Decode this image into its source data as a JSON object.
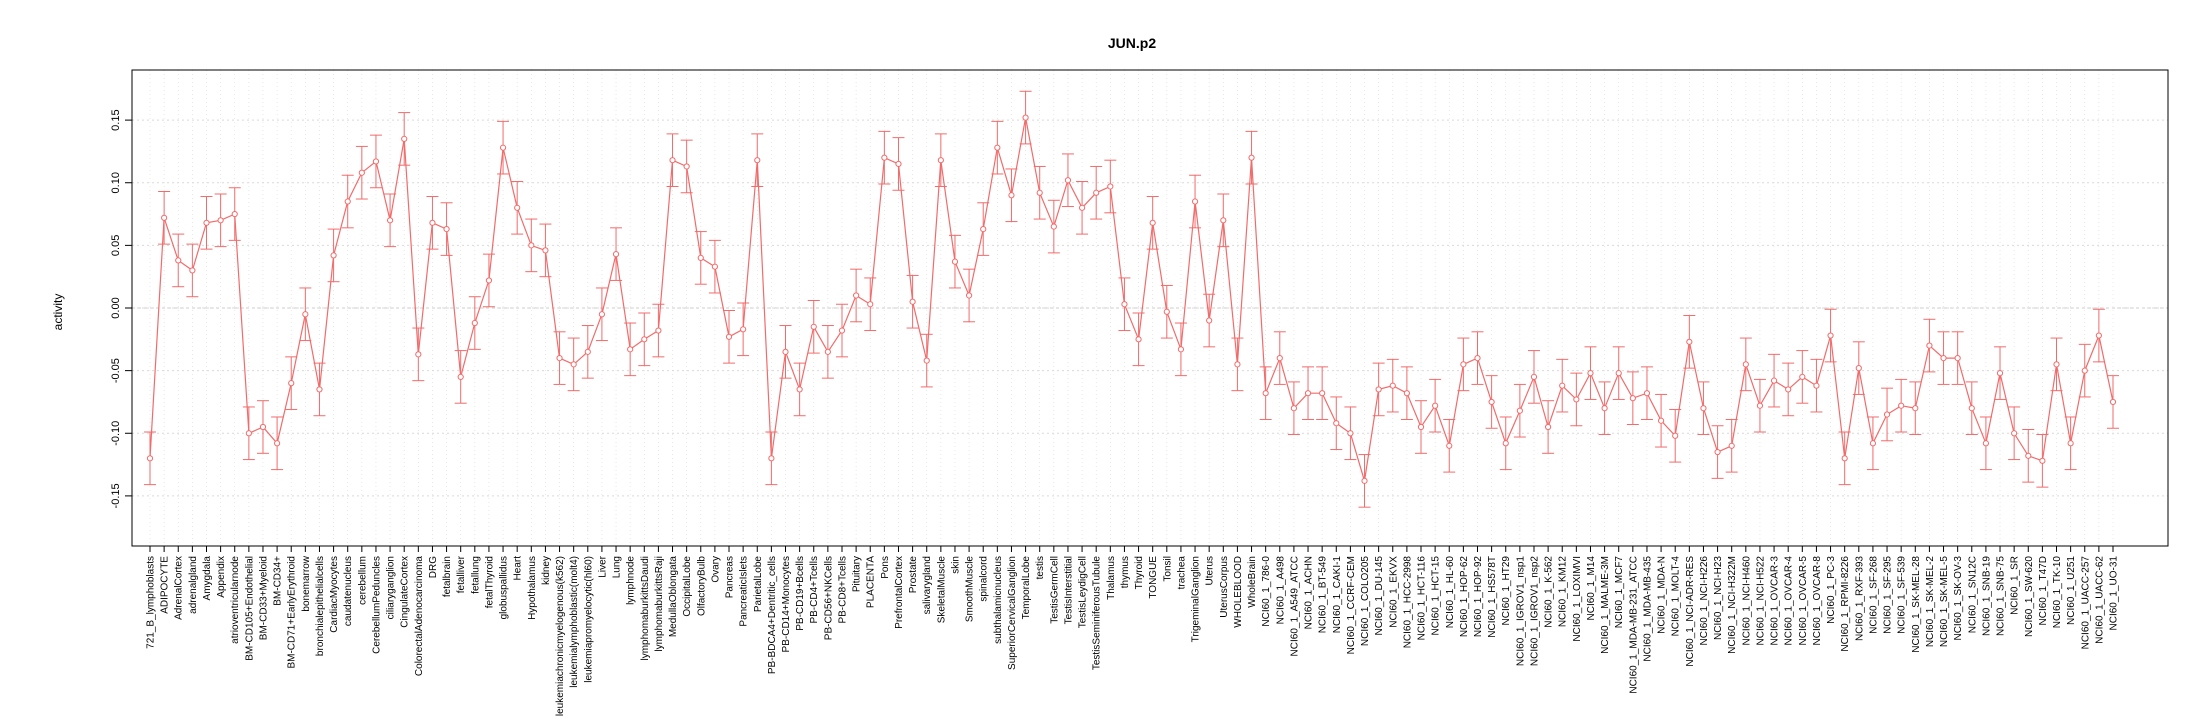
{
  "chart_data": {
    "type": "line",
    "title": "JUN.p2",
    "xlabel": "",
    "ylabel": "activity",
    "ylim": [
      -0.19,
      0.19
    ],
    "yticks": [
      -0.15,
      -0.1,
      -0.05,
      0.0,
      0.05,
      0.1,
      0.15
    ],
    "ytick_labels": [
      "-0.15",
      "-0.10",
      "-0.05",
      "0.00",
      "0.05",
      "0.10",
      "0.15"
    ],
    "reference_line": 0.0,
    "grid": true,
    "colors": {
      "series": "#f26b6b",
      "grid": "#d9d9d9",
      "axis": "#000000"
    },
    "series": [
      {
        "name": "JUN.p2 activity",
        "error": 0.021,
        "points": [
          [
            "721_B_lymphoblasts",
            -0.12
          ],
          [
            "ADIPOCYTE",
            0.072
          ],
          [
            "AdrenalCortex",
            0.038
          ],
          [
            "adrenalgland",
            0.03
          ],
          [
            "Amygdala",
            0.068
          ],
          [
            "Appendix",
            0.07
          ],
          [
            "atrioventricularnode",
            0.075
          ],
          [
            "BM-CD105+Endothelial",
            -0.1
          ],
          [
            "BM-CD33+Myeloid",
            -0.095
          ],
          [
            "BM-CD34+",
            -0.108
          ],
          [
            "BM-CD71+EarlyErythroid",
            -0.06
          ],
          [
            "bonemarrow",
            -0.005
          ],
          [
            "bronchialepithelialcells",
            -0.065
          ],
          [
            "CardiacMyocytes",
            0.042
          ],
          [
            "caudatenucleus",
            0.085
          ],
          [
            "cerebellum",
            0.108
          ],
          [
            "CerebellumPeduncles",
            0.117
          ],
          [
            "ciliaryganglion",
            0.07
          ],
          [
            "CingulateCortex",
            0.135
          ],
          [
            "ColorectalAdenocarcinoma",
            -0.037
          ],
          [
            "DRG",
            0.068
          ],
          [
            "fetalbrain",
            0.063
          ],
          [
            "fetalliver",
            -0.055
          ],
          [
            "fetallung",
            -0.012
          ],
          [
            "fetalThyroid",
            0.022
          ],
          [
            "globuspallidus",
            0.128
          ],
          [
            "Heart",
            0.08
          ],
          [
            "Hypothalamus",
            0.05
          ],
          [
            "kidney",
            0.046
          ],
          [
            "leukemiachronicmyelogenous(k562)",
            -0.04
          ],
          [
            "leukemialymphoblastic(molt4)",
            -0.045
          ],
          [
            "leukemiapromyelocytic(hl60)",
            -0.035
          ],
          [
            "Liver",
            -0.005
          ],
          [
            "Lung",
            0.043
          ],
          [
            "lymphnode",
            -0.033
          ],
          [
            "lymphomaburkittsDaudi",
            -0.025
          ],
          [
            "lymphomaburkittsRaji",
            -0.018
          ],
          [
            "MedullaOblongata",
            0.118
          ],
          [
            "OccipitalLobe",
            0.113
          ],
          [
            "OlfactoryBulb",
            0.04
          ],
          [
            "Ovary",
            0.033
          ],
          [
            "Pancreas",
            -0.023
          ],
          [
            "PancreaticIslets",
            -0.017
          ],
          [
            "ParietalLobe",
            0.118
          ],
          [
            "PB-BDCA4+Dentritic_cells",
            -0.12
          ],
          [
            "PB-CD14+Monocytes",
            -0.035
          ],
          [
            "PB-CD19+Bcells",
            -0.065
          ],
          [
            "PB-CD4+Tcells",
            -0.015
          ],
          [
            "PB-CD56+NKCells",
            -0.035
          ],
          [
            "PB-CD8+Tcells",
            -0.018
          ],
          [
            "Pituitary",
            0.01
          ],
          [
            "PLACENTA",
            0.003
          ],
          [
            "Pons",
            0.12
          ],
          [
            "PrefrontalCortex",
            0.115
          ],
          [
            "Prostate",
            0.005
          ],
          [
            "salivarygland",
            -0.042
          ],
          [
            "SkeletalMuscle",
            0.118
          ],
          [
            "skin",
            0.037
          ],
          [
            "SmoothMuscle",
            0.01
          ],
          [
            "spinalcord",
            0.063
          ],
          [
            "subthalamicnucleus",
            0.128
          ],
          [
            "SuperiorCervicalGanglion",
            0.09
          ],
          [
            "TemporalLobe",
            0.152
          ],
          [
            "testis",
            0.092
          ],
          [
            "TestisGermCell",
            0.065
          ],
          [
            "TestisInterstitial",
            0.102
          ],
          [
            "TestisLeydigCell",
            0.08
          ],
          [
            "TestisSeminiferousTubule",
            0.092
          ],
          [
            "Thalamus",
            0.097
          ],
          [
            "thymus",
            0.003
          ],
          [
            "Thyroid",
            -0.025
          ],
          [
            "TONGUE",
            0.068
          ],
          [
            "Tonsil",
            -0.003
          ],
          [
            "trachea",
            -0.033
          ],
          [
            "TrigeminalGanglion",
            0.085
          ],
          [
            "Uterus",
            -0.01
          ],
          [
            "UterusCorpus",
            0.07
          ],
          [
            "WHOLEBLOOD",
            -0.045
          ],
          [
            "WholeBrain",
            0.12
          ],
          [
            "NCI60_1_786-0",
            -0.068
          ],
          [
            "NCI60_1_A498",
            -0.04
          ],
          [
            "NCI60_1_A549_ATCC",
            -0.08
          ],
          [
            "NCI60_1_ACHN",
            -0.068
          ],
          [
            "NCI60_1_BT-549",
            -0.068
          ],
          [
            "NCI60_1_CAKI-1",
            -0.092
          ],
          [
            "NCI60_1_CCRF-CEM",
            -0.1
          ],
          [
            "NCI60_1_COLO205",
            -0.138
          ],
          [
            "NCI60_1_DU-145",
            -0.065
          ],
          [
            "NCI60_1_EKVX",
            -0.062
          ],
          [
            "NCI60_1_HCC-2998",
            -0.068
          ],
          [
            "NCI60_1_HCT-116",
            -0.095
          ],
          [
            "NCI60_1_HCT-15",
            -0.078
          ],
          [
            "NCI60_1_HL-60",
            -0.11
          ],
          [
            "NCI60_1_HOP-62",
            -0.045
          ],
          [
            "NCI60_1_HOP-92",
            -0.04
          ],
          [
            "NCI60_1_HS578T",
            -0.075
          ],
          [
            "NCI60_1_HT29",
            -0.108
          ],
          [
            "NCI60_1_IGROV1_nsp1",
            -0.082
          ],
          [
            "NCI60_1_IGROV1_nsp2",
            -0.055
          ],
          [
            "NCI60_1_K-562",
            -0.095
          ],
          [
            "NCI60_1_KM12",
            -0.062
          ],
          [
            "NCI60_1_LOXIMVI",
            -0.073
          ],
          [
            "NCI60_1_M14",
            -0.052
          ],
          [
            "NCI60_1_MALME-3M",
            -0.08
          ],
          [
            "NCI60_1_MCF7",
            -0.052
          ],
          [
            "NCI60_1_MDA-MB-231_ATCC",
            -0.072
          ],
          [
            "NCI60_1_MDA-MB-435",
            -0.068
          ],
          [
            "NCI60_1_MDA-N",
            -0.09
          ],
          [
            "NCI60_1_MOLT-4",
            -0.102
          ],
          [
            "NCI60_1_NCI-ADR-RES",
            -0.027
          ],
          [
            "NCI60_1_NCI-H226",
            -0.08
          ],
          [
            "NCI60_1_NCI-H23",
            -0.115
          ],
          [
            "NCI60_1_NCI-H322M",
            -0.11
          ],
          [
            "NCI60_1_NCI-H460",
            -0.045
          ],
          [
            "NCI60_1_NCI-H522",
            -0.078
          ],
          [
            "NCI60_1_OVCAR-3",
            -0.058
          ],
          [
            "NCI60_1_OVCAR-4",
            -0.065
          ],
          [
            "NCI60_1_OVCAR-5",
            -0.055
          ],
          [
            "NCI60_1_OVCAR-8",
            -0.062
          ],
          [
            "NCI60_1_PC-3",
            -0.022
          ],
          [
            "NCI60_1_RPMI-8226",
            -0.12
          ],
          [
            "NCI60_1_RXF-393",
            -0.048
          ],
          [
            "NCI60_1_SF-268",
            -0.108
          ],
          [
            "NCI60_1_SF-295",
            -0.085
          ],
          [
            "NCI60_1_SF-539",
            -0.078
          ],
          [
            "NCI60_1_SK-MEL-28",
            -0.08
          ],
          [
            "NCI60_1_SK-MEL-2",
            -0.03
          ],
          [
            "NCI60_1_SK-MEL-5",
            -0.04
          ],
          [
            "NCI60_1_SK-OV-3",
            -0.04
          ],
          [
            "NCI60_1_SN12C",
            -0.08
          ],
          [
            "NCI60_1_SNB-19",
            -0.108
          ],
          [
            "NCI60_1_SNB-75",
            -0.052
          ],
          [
            "NCI60_1_SR",
            -0.1
          ],
          [
            "NCI60_1_SW-620",
            -0.118
          ],
          [
            "NCI60_1_T47D",
            -0.122
          ],
          [
            "NCI60_1_TK-10",
            -0.045
          ],
          [
            "NCI60_1_U251",
            -0.108
          ],
          [
            "NCI60_1_UACC-257",
            -0.05
          ],
          [
            "NCI60_1_UACC-62",
            -0.022
          ],
          [
            "NCI60_1_UO-31",
            -0.075
          ]
        ]
      }
    ]
  }
}
